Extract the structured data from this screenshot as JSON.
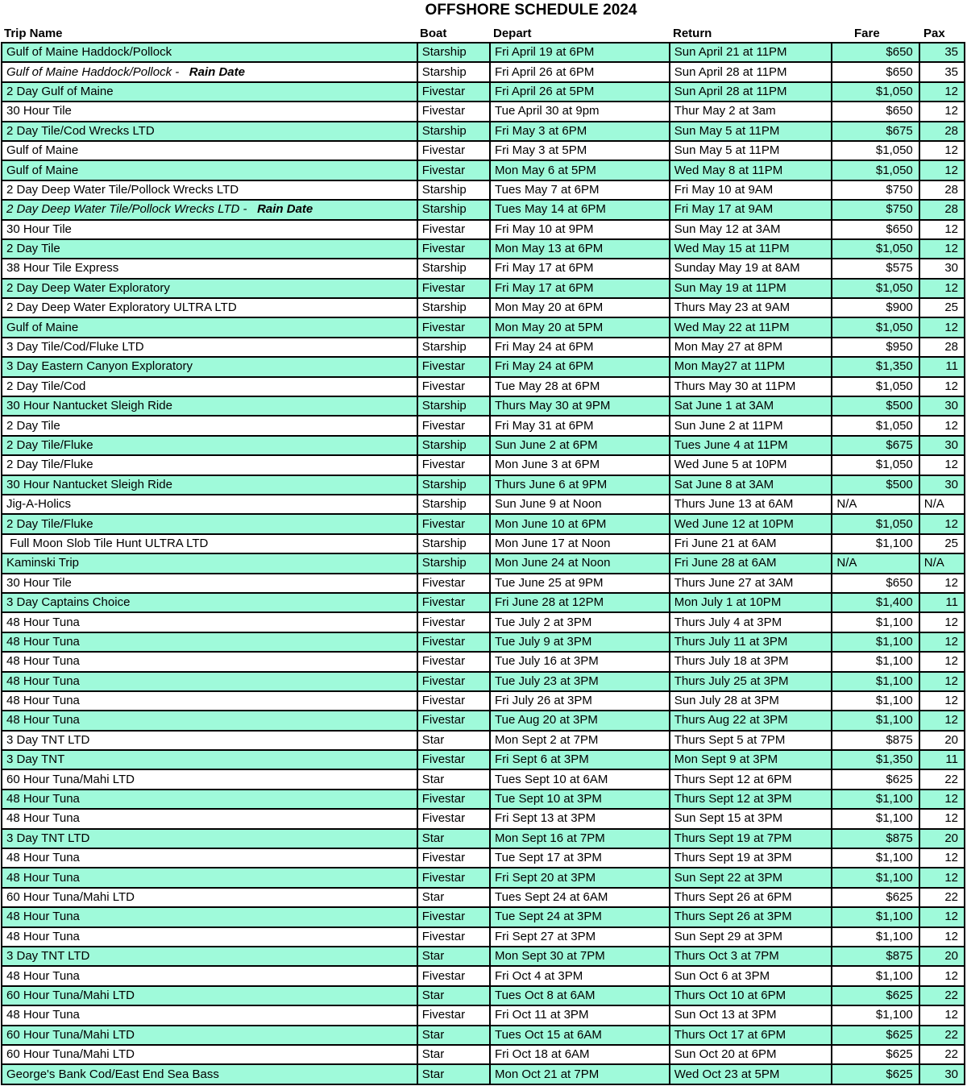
{
  "title": "OFFSHORE SCHEDULE 2024",
  "columns": [
    "Trip Name",
    "Boat",
    "Depart",
    "Return",
    "Fare",
    "Pax"
  ],
  "colors": {
    "row_highlight": "#9FFADA",
    "border": "#000000",
    "text": "#000000"
  },
  "rows": [
    {
      "trip": "Gulf of Maine Haddock/Pollock",
      "boat": "Starship",
      "depart": "Fri April 19 at 6PM",
      "ret": "Sun April 21 at 11PM",
      "fare": "$650",
      "pax": "35",
      "shaded": true
    },
    {
      "trip": "Gulf of Maine Haddock/Pollock -",
      "rain": "Rain Date",
      "boat": "Starship",
      "depart": "Fri April 26 at 6PM",
      "ret": "Sun April 28 at 11PM",
      "fare": "$650",
      "pax": "35",
      "shaded": false
    },
    {
      "trip": "2 Day Gulf of Maine",
      "boat": "Fivestar",
      "depart": "Fri April 26 at 5PM",
      "ret": "Sun April 28 at 11PM",
      "fare": "$1,050",
      "pax": "12",
      "shaded": true
    },
    {
      "trip": "30 Hour Tile",
      "boat": "Fivestar",
      "depart": "Tue April 30 at 9pm",
      "ret": "Thur May 2 at 3am",
      "fare": "$650",
      "pax": "12",
      "shaded": false
    },
    {
      "trip": "2 Day Tile/Cod Wrecks LTD",
      "boat": "Starship",
      "depart": "Fri May 3 at 6PM",
      "ret": "Sun May 5 at 11PM",
      "fare": "$675",
      "pax": "28",
      "shaded": true
    },
    {
      "trip": "Gulf of Maine",
      "boat": "Fivestar",
      "depart": "Fri May 3 at 5PM",
      "ret": "Sun May 5 at 11PM",
      "fare": "$1,050",
      "pax": "12",
      "shaded": false
    },
    {
      "trip": "Gulf of Maine",
      "boat": "Fivestar",
      "depart": "Mon May 6 at 5PM",
      "ret": "Wed May 8 at 11PM",
      "fare": "$1,050",
      "pax": "12",
      "shaded": true
    },
    {
      "trip": "2 Day Deep Water Tile/Pollock Wrecks LTD",
      "boat": "Starship",
      "depart": "Tues May 7 at 6PM",
      "ret": "Fri May 10 at 9AM",
      "fare": "$750",
      "pax": "28",
      "shaded": false
    },
    {
      "trip": "2 Day Deep Water Tile/Pollock Wrecks LTD -",
      "rain": "Rain Date",
      "boat": "Starship",
      "depart": "Tues May 14 at 6PM",
      "ret": "Fri May 17 at 9AM",
      "fare": "$750",
      "pax": "28",
      "shaded": true
    },
    {
      "trip": "30 Hour Tile",
      "boat": "Fivestar",
      "depart": "Fri May 10 at 9PM",
      "ret": "Sun May 12 at 3AM",
      "fare": "$650",
      "pax": "12",
      "shaded": false
    },
    {
      "trip": "2 Day Tile",
      "boat": "Fivestar",
      "depart": "Mon May 13 at 6PM",
      "ret": "Wed May 15 at 11PM",
      "fare": "$1,050",
      "pax": "12",
      "shaded": true
    },
    {
      "trip": "38 Hour Tile Express",
      "boat": "Starship",
      "depart": "Fri May 17 at 6PM",
      "ret": "Sunday May 19 at 8AM",
      "fare": "$575",
      "pax": "30",
      "shaded": false
    },
    {
      "trip": "2 Day Deep Water Exploratory",
      "boat": "Fivestar",
      "depart": "Fri May 17 at 6PM",
      "ret": "Sun May 19 at 11PM",
      "fare": "$1,050",
      "pax": "12",
      "shaded": true
    },
    {
      "trip": "2 Day Deep Water Exploratory ULTRA LTD",
      "boat": "Starship",
      "depart": "Mon May 20 at 6PM",
      "ret": "Thurs May 23 at 9AM",
      "fare": "$900",
      "pax": "25",
      "shaded": false
    },
    {
      "trip": "Gulf of Maine",
      "boat": "Fivestar",
      "depart": "Mon May 20 at 5PM",
      "ret": "Wed May 22 at 11PM",
      "fare": "$1,050",
      "pax": "12",
      "shaded": true
    },
    {
      "trip": "3 Day Tile/Cod/Fluke LTD",
      "boat": "Starship",
      "depart": "Fri May 24 at 6PM",
      "ret": "Mon May 27 at 8PM",
      "fare": "$950",
      "pax": "28",
      "shaded": false
    },
    {
      "trip": "3 Day Eastern Canyon Exploratory",
      "boat": "Fivestar",
      "depart": "Fri May 24 at 6PM",
      "ret": "Mon May27 at 11PM",
      "fare": "$1,350",
      "pax": "11",
      "shaded": true
    },
    {
      "trip": "2 Day Tile/Cod",
      "boat": "Fivestar",
      "depart": "Tue May 28 at 6PM",
      "ret": "Thurs May 30 at 11PM",
      "fare": "$1,050",
      "pax": "12",
      "shaded": false
    },
    {
      "trip": "30 Hour Nantucket Sleigh Ride",
      "boat": "Starship",
      "depart": "Thurs May 30 at 9PM",
      "ret": "Sat June 1 at 3AM",
      "fare": "$500",
      "pax": "30",
      "shaded": true
    },
    {
      "trip": "2 Day Tile",
      "boat": "Fivestar",
      "depart": "Fri May 31 at 6PM",
      "ret": "Sun June 2 at 11PM",
      "fare": "$1,050",
      "pax": "12",
      "shaded": false
    },
    {
      "trip": "2 Day Tile/Fluke",
      "boat": "Starship",
      "depart": "Sun June 2 at 6PM",
      "ret": "Tues June 4 at 11PM",
      "fare": "$675",
      "pax": "30",
      "shaded": true
    },
    {
      "trip": "2 Day Tile/Fluke",
      "boat": "Fivestar",
      "depart": "Mon June 3 at 6PM",
      "ret": "Wed June 5 at 10PM",
      "fare": "$1,050",
      "pax": "12",
      "shaded": false
    },
    {
      "trip": "30 Hour Nantucket Sleigh Ride",
      "boat": "Starship",
      "depart": "Thurs June 6 at 9PM",
      "ret": "Sat June 8 at 3AM",
      "fare": "$500",
      "pax": "30",
      "shaded": true
    },
    {
      "trip": "Jig-A-Holics",
      "boat": "Starship",
      "depart": "Sun June 9 at Noon",
      "ret": "Thurs June 13 at 6AM",
      "fare": "N/A",
      "pax": "N/A",
      "shaded": false
    },
    {
      "trip": "2 Day Tile/Fluke",
      "boat": "Fivestar",
      "depart": "Mon June 10 at 6PM",
      "ret": "Wed June 12 at 10PM",
      "fare": "$1,050",
      "pax": "12",
      "shaded": true
    },
    {
      "trip": " Full Moon Slob Tile Hunt ULTRA LTD",
      "boat": "Starship",
      "depart": "Mon June 17 at Noon",
      "ret": "Fri June 21 at 6AM",
      "fare": "$1,100",
      "pax": "25",
      "shaded": false
    },
    {
      "trip": "Kaminski Trip",
      "boat": "Starship",
      "depart": "Mon June 24 at Noon",
      "ret": "Fri June 28 at 6AM",
      "fare": "N/A",
      "pax": "N/A",
      "shaded": true
    },
    {
      "trip": "30 Hour Tile",
      "boat": "Fivestar",
      "depart": "Tue June 25 at 9PM",
      "ret": "Thurs June 27 at 3AM",
      "fare": "$650",
      "pax": "12",
      "shaded": false
    },
    {
      "trip": "3 Day Captains Choice",
      "boat": "Fivestar",
      "depart": "Fri June 28 at 12PM",
      "ret": "Mon July 1 at 10PM",
      "fare": "$1,400",
      "pax": "11",
      "shaded": true
    },
    {
      "trip": "48 Hour Tuna",
      "boat": "Fivestar",
      "depart": "Tue July 2 at 3PM",
      "ret": "Thurs July 4 at 3PM",
      "fare": "$1,100",
      "pax": "12",
      "shaded": false
    },
    {
      "trip": "48 Hour Tuna",
      "boat": "Fivestar",
      "depart": "Tue July 9 at 3PM",
      "ret": "Thurs July 11 at 3PM",
      "fare": "$1,100",
      "pax": "12",
      "shaded": true
    },
    {
      "trip": "48 Hour Tuna",
      "boat": "Fivestar",
      "depart": "Tue July 16 at 3PM",
      "ret": "Thurs July 18 at 3PM",
      "fare": "$1,100",
      "pax": "12",
      "shaded": false
    },
    {
      "trip": "48 Hour Tuna",
      "boat": "Fivestar",
      "depart": "Tue July 23 at 3PM",
      "ret": "Thurs July 25 at 3PM",
      "fare": "$1,100",
      "pax": "12",
      "shaded": true
    },
    {
      "trip": "48 Hour Tuna",
      "boat": "Fivestar",
      "depart": "Fri July 26 at 3PM",
      "ret": "Sun July 28 at 3PM",
      "fare": "$1,100",
      "pax": "12",
      "shaded": false
    },
    {
      "trip": "48 Hour Tuna",
      "boat": "Fivestar",
      "depart": "Tue Aug 20 at 3PM",
      "ret": "Thurs Aug 22 at 3PM",
      "fare": "$1,100",
      "pax": "12",
      "shaded": true
    },
    {
      "trip": "3 Day TNT LTD",
      "boat": "Star",
      "depart": "Mon Sept 2 at 7PM",
      "ret": "Thurs Sept 5 at 7PM",
      "fare": "$875",
      "pax": "20",
      "shaded": false
    },
    {
      "trip": "3 Day TNT",
      "boat": "Fivestar",
      "depart": "Fri Sept 6 at 3PM",
      "ret": "Mon Sept 9 at 3PM",
      "fare": "$1,350",
      "pax": "11",
      "shaded": true
    },
    {
      "trip": "60 Hour Tuna/Mahi LTD",
      "boat": "Star",
      "depart": "Tues Sept 10 at 6AM",
      "ret": "Thurs Sept 12 at 6PM",
      "fare": "$625",
      "pax": "22",
      "shaded": false
    },
    {
      "trip": "48 Hour Tuna",
      "boat": "Fivestar",
      "depart": "Tue Sept 10 at 3PM",
      "ret": "Thurs Sept 12 at 3PM",
      "fare": "$1,100",
      "pax": "12",
      "shaded": true
    },
    {
      "trip": "48 Hour Tuna",
      "boat": "Fivestar",
      "depart": "Fri Sept 13 at 3PM",
      "ret": "Sun Sept 15 at 3PM",
      "fare": "$1,100",
      "pax": "12",
      "shaded": false
    },
    {
      "trip": "3 Day TNT LTD",
      "boat": "Star",
      "depart": "Mon Sept 16 at 7PM",
      "ret": "Thurs Sept 19 at 7PM",
      "fare": "$875",
      "pax": "20",
      "shaded": true
    },
    {
      "trip": "48 Hour Tuna",
      "boat": "Fivestar",
      "depart": "Tue Sept 17 at 3PM",
      "ret": "Thurs Sept 19 at 3PM",
      "fare": "$1,100",
      "pax": "12",
      "shaded": false
    },
    {
      "trip": "48 Hour Tuna",
      "boat": "Fivestar",
      "depart": "Fri Sept 20 at 3PM",
      "ret": "Sun Sept 22 at 3PM",
      "fare": "$1,100",
      "pax": "12",
      "shaded": true
    },
    {
      "trip": "60 Hour Tuna/Mahi LTD",
      "boat": "Star",
      "depart": "Tues Sept 24 at 6AM",
      "ret": "Thurs Sept 26 at 6PM",
      "fare": "$625",
      "pax": "22",
      "shaded": false
    },
    {
      "trip": "48 Hour Tuna",
      "boat": "Fivestar",
      "depart": "Tue Sept 24 at 3PM",
      "ret": "Thurs Sept 26 at 3PM",
      "fare": "$1,100",
      "pax": "12",
      "shaded": true
    },
    {
      "trip": "48 Hour Tuna",
      "boat": "Fivestar",
      "depart": "Fri Sept 27 at 3PM",
      "ret": "Sun Sept 29 at 3PM",
      "fare": "$1,100",
      "pax": "12",
      "shaded": false
    },
    {
      "trip": "3 Day TNT LTD",
      "boat": "Star",
      "depart": "Mon Sept 30 at 7PM",
      "ret": "Thurs Oct 3 at 7PM",
      "fare": "$875",
      "pax": "20",
      "shaded": true
    },
    {
      "trip": "48 Hour Tuna",
      "boat": "Fivestar",
      "depart": "Fri Oct 4 at 3PM",
      "ret": "Sun Oct 6 at 3PM",
      "fare": "$1,100",
      "pax": "12",
      "shaded": false
    },
    {
      "trip": "60 Hour Tuna/Mahi LTD",
      "boat": "Star",
      "depart": "Tues Oct 8 at 6AM",
      "ret": "Thurs Oct 10 at 6PM",
      "fare": "$625",
      "pax": "22",
      "shaded": true
    },
    {
      "trip": "48 Hour Tuna",
      "boat": "Fivestar",
      "depart": "Fri Oct 11 at 3PM",
      "ret": "Sun Oct 13 at 3PM",
      "fare": "$1,100",
      "pax": "12",
      "shaded": false
    },
    {
      "trip": "60 Hour Tuna/Mahi LTD",
      "boat": "Star",
      "depart": "Tues Oct 15 at 6AM",
      "ret": "Thurs Oct 17 at 6PM",
      "fare": "$625",
      "pax": "22",
      "shaded": true
    },
    {
      "trip": "60 Hour Tuna/Mahi LTD",
      "boat": "Star",
      "depart": "Fri Oct 18 at 6AM",
      "ret": "Sun Oct 20 at 6PM",
      "fare": "$625",
      "pax": "22",
      "shaded": false
    },
    {
      "trip": "George's Bank Cod/East End Sea Bass",
      "boat": "Star",
      "depart": "Mon Oct 21 at 7PM",
      "ret": "Wed Oct 23 at 5PM",
      "fare": "$625",
      "pax": "30",
      "shaded": true
    }
  ]
}
